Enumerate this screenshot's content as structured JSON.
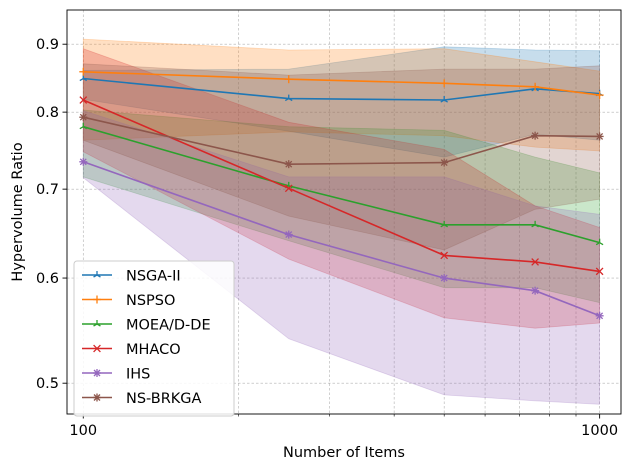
{
  "chart_data": {
    "type": "line",
    "xlabel": "Number of Items",
    "ylabel": "Hypervolume Ratio",
    "xscale": "log",
    "yscale": "log",
    "xlim": [
      93,
      1100
    ],
    "ylim": [
      0.474,
      0.955
    ],
    "xticks": [
      100,
      1000
    ],
    "xtick_labels": [
      "100",
      "1000"
    ],
    "yticks": [
      0.5,
      0.6,
      0.7,
      0.8,
      0.9
    ],
    "ytick_labels": [
      "0.5",
      "0.6",
      "0.7",
      "0.8",
      "0.9"
    ],
    "grid": true,
    "legend_position": "lower-left",
    "x": [
      100,
      250,
      500,
      750,
      1000
    ],
    "series": [
      {
        "name": "NSGA-II",
        "color": "#1f77b4",
        "marker": "tri",
        "values": [
          0.848,
          0.819,
          0.817,
          0.833,
          0.826
        ],
        "upper": [
          0.86,
          0.862,
          0.896,
          0.891,
          0.89
        ],
        "lower": [
          0.818,
          0.774,
          0.74,
          0.77,
          0.762
        ]
      },
      {
        "name": "NSPSO",
        "color": "#ff7f0e",
        "marker": "plus",
        "values": [
          0.858,
          0.847,
          0.841,
          0.836,
          0.824
        ],
        "upper": [
          0.908,
          0.891,
          0.893,
          0.873,
          0.859
        ],
        "lower": [
          0.762,
          0.773,
          0.768,
          0.753,
          0.748
        ]
      },
      {
        "name": "MOEA/D-DE",
        "color": "#2ca02c",
        "marker": "tri",
        "values": [
          0.78,
          0.704,
          0.658,
          0.658,
          0.638
        ],
        "upper": [
          0.803,
          0.78,
          0.775,
          0.74,
          0.72
        ],
        "lower": [
          0.715,
          0.64,
          0.59,
          0.59,
          0.575
        ]
      },
      {
        "name": "MHACO",
        "color": "#d62728",
        "marker": "x",
        "values": [
          0.817,
          0.701,
          0.624,
          0.617,
          0.607
        ],
        "upper": [
          0.893,
          0.786,
          0.75,
          0.68,
          0.655
        ],
        "lower": [
          0.747,
          0.62,
          0.56,
          0.55,
          0.555
        ]
      },
      {
        "name": "IHS",
        "color": "#9467bd",
        "marker": "asterisk",
        "values": [
          0.734,
          0.647,
          0.6,
          0.587,
          0.562
        ],
        "upper": [
          0.802,
          0.715,
          0.715,
          0.68,
          0.67
        ],
        "lower": [
          0.714,
          0.54,
          0.49,
          0.485,
          0.482
        ]
      },
      {
        "name": "NS-BRKGA",
        "color": "#8c564b",
        "marker": "asterisk",
        "values": [
          0.793,
          0.731,
          0.733,
          0.768,
          0.767
        ],
        "upper": [
          0.87,
          0.853,
          0.862,
          0.862,
          0.867
        ],
        "lower": [
          0.762,
          0.668,
          0.63,
          0.676,
          0.688
        ]
      }
    ]
  }
}
